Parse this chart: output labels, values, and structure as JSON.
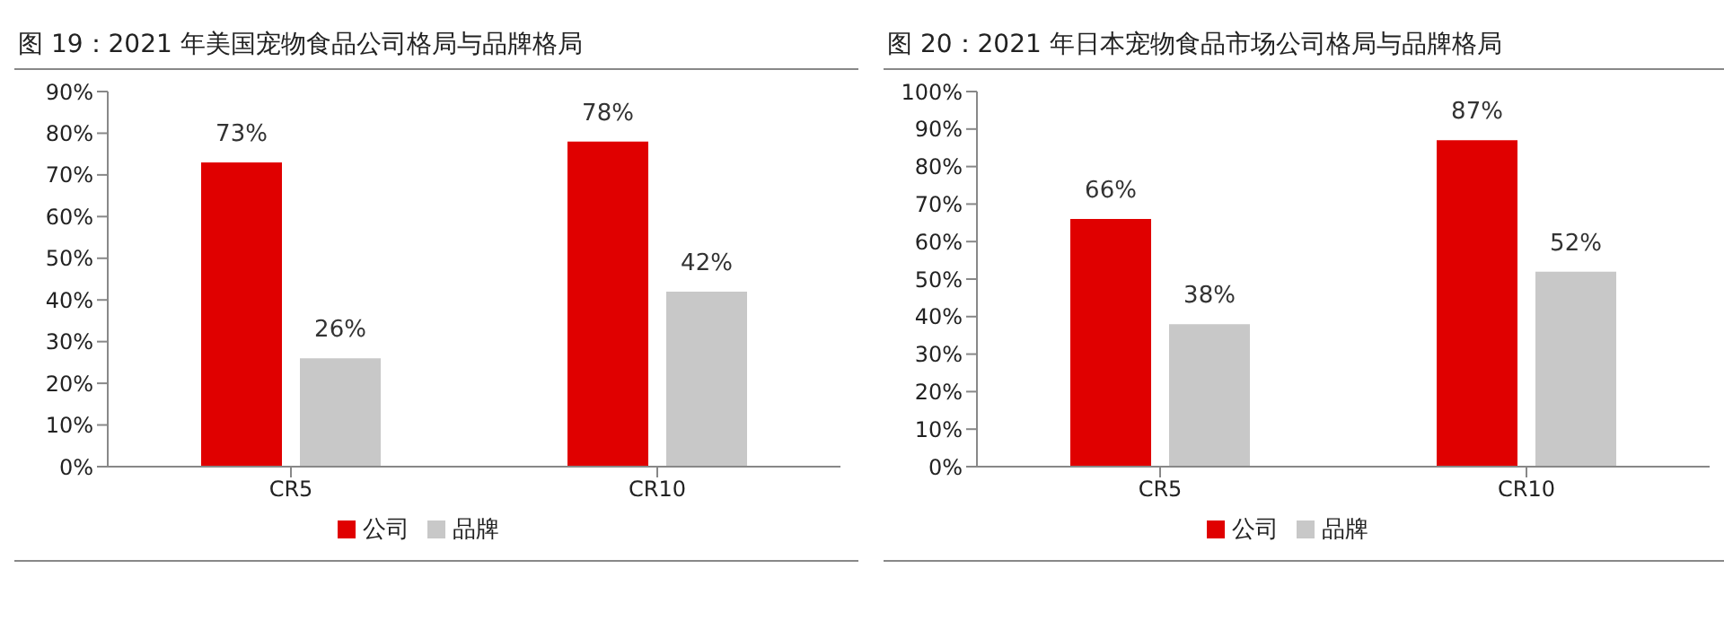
{
  "chart_data": [
    {
      "type": "bar",
      "title": "图 19：2021 年美国宠物食品公司格局与品牌格局",
      "categories": [
        "CR5",
        "CR10"
      ],
      "series": [
        {
          "name": "公司",
          "color": "#e00000",
          "values": [
            73,
            78
          ],
          "value_labels": [
            "73%",
            "78%"
          ]
        },
        {
          "name": "品牌",
          "color": "#c8c8c8",
          "values": [
            26,
            42
          ],
          "value_labels": [
            "26%",
            "42%"
          ]
        }
      ],
      "ylim": [
        0,
        90
      ],
      "yticks": [
        {
          "value": 0,
          "label": "0%"
        },
        {
          "value": 10,
          "label": "10%"
        },
        {
          "value": 20,
          "label": "20%"
        },
        {
          "value": 30,
          "label": "30%"
        },
        {
          "value": 40,
          "label": "40%"
        },
        {
          "value": 50,
          "label": "50%"
        },
        {
          "value": 60,
          "label": "60%"
        },
        {
          "value": 70,
          "label": "70%"
        },
        {
          "value": 80,
          "label": "80%"
        },
        {
          "value": 90,
          "label": "90%"
        }
      ],
      "legend": "bottom"
    },
    {
      "type": "bar",
      "title": "图 20：2021 年日本宠物食品市场公司格局与品牌格局",
      "categories": [
        "CR5",
        "CR10"
      ],
      "series": [
        {
          "name": "公司",
          "color": "#e00000",
          "values": [
            66,
            87
          ],
          "value_labels": [
            "66%",
            "87%"
          ]
        },
        {
          "name": "品牌",
          "color": "#c8c8c8",
          "values": [
            38,
            52
          ],
          "value_labels": [
            "38%",
            "52%"
          ]
        }
      ],
      "ylim": [
        0,
        100
      ],
      "yticks": [
        {
          "value": 0,
          "label": "0%"
        },
        {
          "value": 10,
          "label": "10%"
        },
        {
          "value": 20,
          "label": "20%"
        },
        {
          "value": 30,
          "label": "30%"
        },
        {
          "value": 40,
          "label": "40%"
        },
        {
          "value": 50,
          "label": "50%"
        },
        {
          "value": 60,
          "label": "60%"
        },
        {
          "value": 70,
          "label": "70%"
        },
        {
          "value": 80,
          "label": "80%"
        },
        {
          "value": 90,
          "label": "90%"
        },
        {
          "value": 100,
          "label": "100%"
        }
      ],
      "legend": "bottom"
    }
  ]
}
